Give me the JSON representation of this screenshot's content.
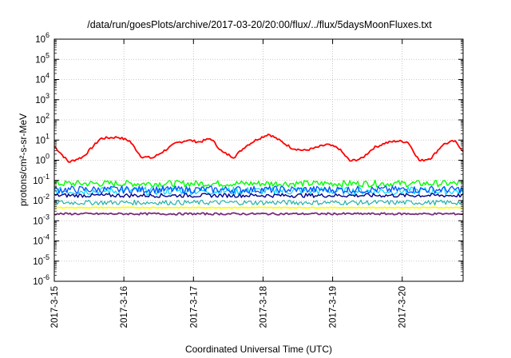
{
  "chart_data": {
    "type": "line",
    "title": "/data/run/goesPlots/archive/2017-03-20/20:00/flux/../flux/5daysMoonFluxes.txt",
    "xlabel": "Coordinated Universal Time (UTC)",
    "ylabel": "protons/cm²-s-sr-MeV",
    "y_scale": "log",
    "ylim": [
      1e-06,
      1000000.0
    ],
    "y_ticks": [
      "10-6",
      "10-5",
      "10-4",
      "10-3",
      "10-2",
      "10-1",
      "100",
      "101",
      "102",
      "103",
      "104",
      "105",
      "106"
    ],
    "x_range": [
      "2017-03-15T00:00",
      "2017-03-20T21:00"
    ],
    "x_ticks": [
      "2017-3-15",
      "2017-3-16",
      "2017-3-17",
      "2017-3-18",
      "2017-3-19",
      "2017-3-20"
    ],
    "grid": true,
    "legend": "none",
    "series": [
      {
        "color": "#ff0000",
        "width": 1.8,
        "noise": 0.06,
        "x": [
          "2017-03-15T00:00",
          "2017-03-15T05:00",
          "2017-03-15T10:00",
          "2017-03-15T16:00",
          "2017-03-15T22:00",
          "2017-03-16T02:00",
          "2017-03-16T06:00",
          "2017-03-16T10:00",
          "2017-03-16T14:00",
          "2017-03-16T18:00",
          "2017-03-16T22:00",
          "2017-03-17T02:00",
          "2017-03-17T06:00",
          "2017-03-17T10:00",
          "2017-03-17T14:00",
          "2017-03-17T18:00",
          "2017-03-17T22:00",
          "2017-03-18T02:00",
          "2017-03-18T06:00",
          "2017-03-18T10:00",
          "2017-03-18T14:00",
          "2017-03-18T18:00",
          "2017-03-18T22:00",
          "2017-03-19T02:00",
          "2017-03-19T06:00",
          "2017-03-19T10:00",
          "2017-03-19T14:00",
          "2017-03-19T18:00",
          "2017-03-19T22:00",
          "2017-03-20T02:00",
          "2017-03-20T06:00",
          "2017-03-20T10:00",
          "2017-03-20T14:00",
          "2017-03-20T18:00",
          "2017-03-20T21:00"
        ],
        "y": [
          5,
          0.8,
          1.5,
          12,
          14,
          9,
          1.5,
          1.3,
          3,
          7,
          10,
          8,
          12,
          2.5,
          1.4,
          5,
          11,
          20,
          9,
          4,
          3,
          4,
          6,
          4,
          0.9,
          1.2,
          4,
          7,
          9,
          8,
          0.9,
          1.3,
          6,
          9,
          3
        ]
      },
      {
        "color": "#00ff00",
        "width": 1.4,
        "noise": 0.16,
        "x": [
          "2017-03-15T00:00",
          "2017-03-17T00:00",
          "2017-03-19T00:00",
          "2017-03-20T21:00"
        ],
        "y": [
          0.07,
          0.07,
          0.07,
          0.07
        ]
      },
      {
        "color": "#00d4ff",
        "width": 1.2,
        "noise": 0.2,
        "x": [
          "2017-03-15T00:00",
          "2017-03-17T00:00",
          "2017-03-19T00:00",
          "2017-03-20T21:00"
        ],
        "y": [
          0.03,
          0.03,
          0.03,
          0.03
        ]
      },
      {
        "color": "#0050ff",
        "width": 1.3,
        "noise": 0.18,
        "x": [
          "2017-03-15T00:00",
          "2017-03-17T00:00",
          "2017-03-19T00:00",
          "2017-03-20T21:00"
        ],
        "y": [
          0.035,
          0.035,
          0.035,
          0.035
        ]
      },
      {
        "color": "#00008b",
        "width": 1.4,
        "noise": 0.1,
        "x": [
          "2017-03-15T00:00",
          "2017-03-17T00:00",
          "2017-03-19T00:00",
          "2017-03-20T21:00"
        ],
        "y": [
          0.018,
          0.018,
          0.018,
          0.018
        ]
      },
      {
        "color": "#20b2aa",
        "width": 1.2,
        "noise": 0.12,
        "x": [
          "2017-03-15T00:00",
          "2017-03-17T00:00",
          "2017-03-19T00:00",
          "2017-03-20T21:00"
        ],
        "y": [
          0.008,
          0.008,
          0.008,
          0.008
        ]
      },
      {
        "color": "#ffff00",
        "width": 1.8,
        "noise": 0.02,
        "x": [
          "2017-03-15T00:00",
          "2017-03-17T00:00",
          "2017-03-19T00:00",
          "2017-03-20T21:00"
        ],
        "y": [
          0.0045,
          0.0045,
          0.0045,
          0.0045
        ]
      },
      {
        "color": "#7b2d7b",
        "width": 1.8,
        "noise": 0.05,
        "x": [
          "2017-03-15T00:00",
          "2017-03-17T00:00",
          "2017-03-19T00:00",
          "2017-03-20T21:00"
        ],
        "y": [
          0.0022,
          0.0022,
          0.0022,
          0.0022
        ]
      }
    ]
  }
}
